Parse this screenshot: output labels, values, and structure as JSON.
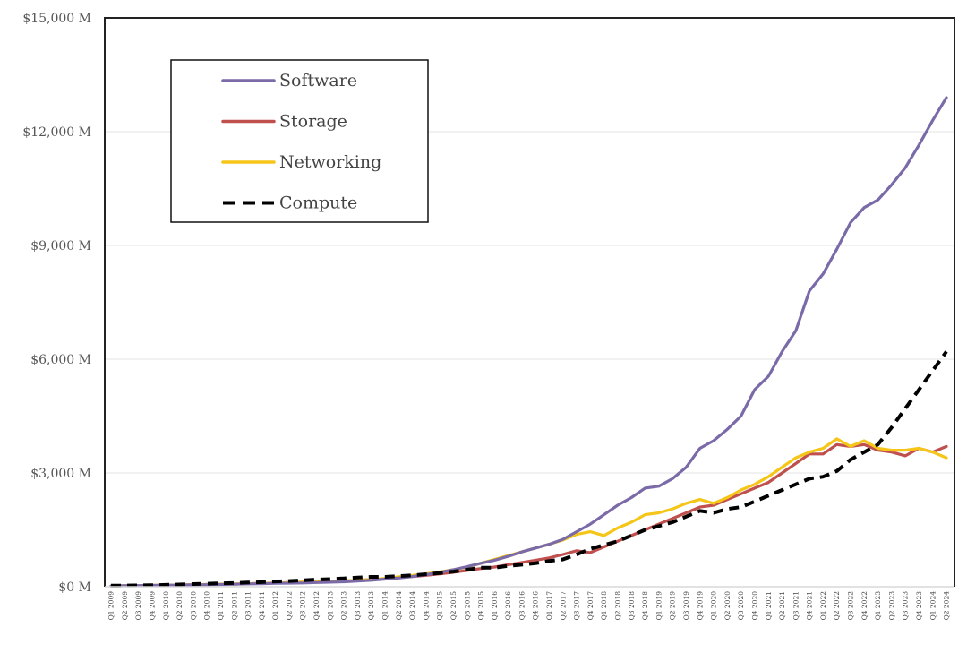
{
  "chart_data": {
    "type": "line",
    "title": "",
    "xlabel": "",
    "ylabel": "",
    "ylim": [
      0,
      15000
    ],
    "yticks": [
      0,
      3000,
      6000,
      9000,
      12000,
      15000
    ],
    "ytick_labels": [
      "$0 M",
      "$3,000 M",
      "$6,000 M",
      "$9,000 M",
      "$12,000 M",
      "$15,000 M"
    ],
    "grid": true,
    "legend_position": "top-left",
    "categories": [
      "Q1 2009",
      "Q2 2009",
      "Q3 2009",
      "Q4 2009",
      "Q1 2010",
      "Q2 2010",
      "Q3 2010",
      "Q4 2010",
      "Q1 2011",
      "Q2 2011",
      "Q3 2011",
      "Q4 2011",
      "Q1 2012",
      "Q2 2012",
      "Q3 2012",
      "Q4 2012",
      "Q1 2013",
      "Q2 2013",
      "Q3 2013",
      "Q4 2013",
      "Q1 2014",
      "Q2 2014",
      "Q3 2014",
      "Q4 2014",
      "Q1 2015",
      "Q2 2015",
      "Q3 2015",
      "Q4 2015",
      "Q1 2016",
      "Q2 2016",
      "Q3 2016",
      "Q4 2016",
      "Q1 2017",
      "Q2 2017",
      "Q3 2017",
      "Q4 2017",
      "Q1 2018",
      "Q2 2018",
      "Q3 2018",
      "Q4 2018",
      "Q1 2019",
      "Q2 2019",
      "Q3 2019",
      "Q4 2019",
      "Q1 2020",
      "Q2 2020",
      "Q3 2020",
      "Q4 2020",
      "Q1 2021",
      "Q2 2021",
      "Q3 2021",
      "Q4 2021",
      "Q1 2022",
      "Q2 2022",
      "Q3 2022",
      "Q4 2022",
      "Q1 2023",
      "Q2 2023",
      "Q3 2023",
      "Q4 2023",
      "Q1 2024",
      "Q2 2024"
    ],
    "series": [
      {
        "name": "Software",
        "color": "#7b6aa8",
        "dash": false,
        "values": [
          20,
          25,
          30,
          35,
          40,
          45,
          50,
          55,
          60,
          65,
          75,
          80,
          90,
          95,
          100,
          110,
          120,
          130,
          150,
          170,
          200,
          230,
          270,
          320,
          380,
          450,
          530,
          620,
          700,
          800,
          920,
          1020,
          1120,
          1250,
          1450,
          1650,
          1900,
          2150,
          2350,
          2600,
          2650,
          2850,
          3150,
          3650,
          3850,
          4150,
          4500,
          5200,
          5550,
          6200,
          6750,
          7800,
          8250,
          8900,
          9600,
          10000,
          10200,
          10600,
          11050,
          11650,
          12300,
          12900
        ]
      },
      {
        "name": "Storage",
        "color": "#c0504d",
        "dash": false,
        "values": [
          20,
          25,
          30,
          35,
          40,
          45,
          55,
          60,
          65,
          70,
          80,
          90,
          100,
          110,
          120,
          130,
          140,
          150,
          170,
          190,
          210,
          240,
          270,
          300,
          340,
          380,
          430,
          480,
          520,
          580,
          640,
          700,
          760,
          850,
          950,
          900,
          1050,
          1200,
          1350,
          1500,
          1650,
          1800,
          1950,
          2100,
          2150,
          2300,
          2450,
          2600,
          2750,
          3000,
          3250,
          3500,
          3500,
          3750,
          3700,
          3750,
          3600,
          3550,
          3450,
          3650,
          3550,
          3700
        ]
      },
      {
        "name": "Networking",
        "color": "#f5c518",
        "dash": false,
        "values": [
          20,
          25,
          30,
          35,
          40,
          45,
          55,
          60,
          65,
          70,
          80,
          90,
          100,
          110,
          120,
          130,
          140,
          150,
          170,
          190,
          220,
          260,
          300,
          340,
          390,
          450,
          520,
          620,
          720,
          820,
          920,
          1020,
          1120,
          1230,
          1380,
          1450,
          1350,
          1550,
          1700,
          1900,
          1950,
          2050,
          2200,
          2300,
          2200,
          2350,
          2550,
          2700,
          2900,
          3150,
          3400,
          3550,
          3650,
          3900,
          3700,
          3850,
          3650,
          3600,
          3600,
          3650,
          3550,
          3400
        ]
      },
      {
        "name": "Compute",
        "color": "#000000",
        "dash": true,
        "values": [
          30,
          30,
          35,
          40,
          50,
          60,
          70,
          80,
          90,
          100,
          110,
          120,
          140,
          150,
          170,
          190,
          200,
          220,
          240,
          260,
          260,
          280,
          300,
          330,
          360,
          400,
          450,
          500,
          500,
          550,
          580,
          620,
          680,
          720,
          850,
          1000,
          1100,
          1200,
          1350,
          1500,
          1600,
          1700,
          1850,
          2000,
          1950,
          2050,
          2100,
          2250,
          2400,
          2550,
          2700,
          2850,
          2900,
          3050,
          3350,
          3550,
          3750,
          4200,
          4700,
          5200,
          5700,
          6200
        ]
      }
    ]
  }
}
